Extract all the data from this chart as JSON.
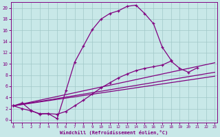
{
  "xlabel": "Windchill (Refroidissement éolien,°C)",
  "bg_color": "#c8e8e8",
  "line_color": "#800080",
  "grid_color": "#a0c8c8",
  "x_ticks": [
    0,
    1,
    2,
    3,
    4,
    5,
    6,
    7,
    8,
    9,
    10,
    11,
    12,
    13,
    14,
    15,
    16,
    17,
    18,
    19,
    20,
    21,
    22,
    23
  ],
  "y_ticks": [
    0,
    2,
    4,
    6,
    8,
    10,
    12,
    14,
    16,
    18,
    20
  ],
  "xlim": [
    -0.3,
    23.3
  ],
  "ylim": [
    -0.5,
    21
  ],
  "curve1_x": [
    0,
    1,
    2,
    3,
    4,
    5,
    6,
    7,
    8,
    9,
    10,
    11,
    12,
    13,
    14,
    15,
    16,
    17,
    18
  ],
  "curve1_y": [
    2.5,
    3.0,
    1.7,
    1.0,
    1.1,
    0.2,
    5.2,
    10.3,
    13.2,
    16.1,
    18.0,
    19.0,
    19.5,
    20.3,
    20.5,
    19.0,
    17.2,
    13.0,
    10.7
  ],
  "curve2_x": [
    0,
    1,
    2,
    3,
    4,
    5,
    6,
    7,
    8,
    9,
    10,
    11,
    12,
    13,
    14,
    15,
    16,
    17,
    18,
    19,
    20,
    21
  ],
  "curve2_y": [
    2.5,
    2.0,
    1.6,
    1.1,
    1.1,
    1.0,
    1.5,
    2.5,
    3.5,
    4.6,
    5.7,
    6.6,
    7.5,
    8.2,
    8.8,
    9.2,
    9.5,
    9.8,
    10.5,
    9.2,
    8.5,
    9.3
  ],
  "line1_x": [
    0,
    23
  ],
  "line1_y": [
    2.5,
    10.2
  ],
  "line2_x": [
    0,
    23
  ],
  "line2_y": [
    2.5,
    8.5
  ],
  "line3_x": [
    0,
    23
  ],
  "line3_y": [
    2.5,
    7.8
  ]
}
